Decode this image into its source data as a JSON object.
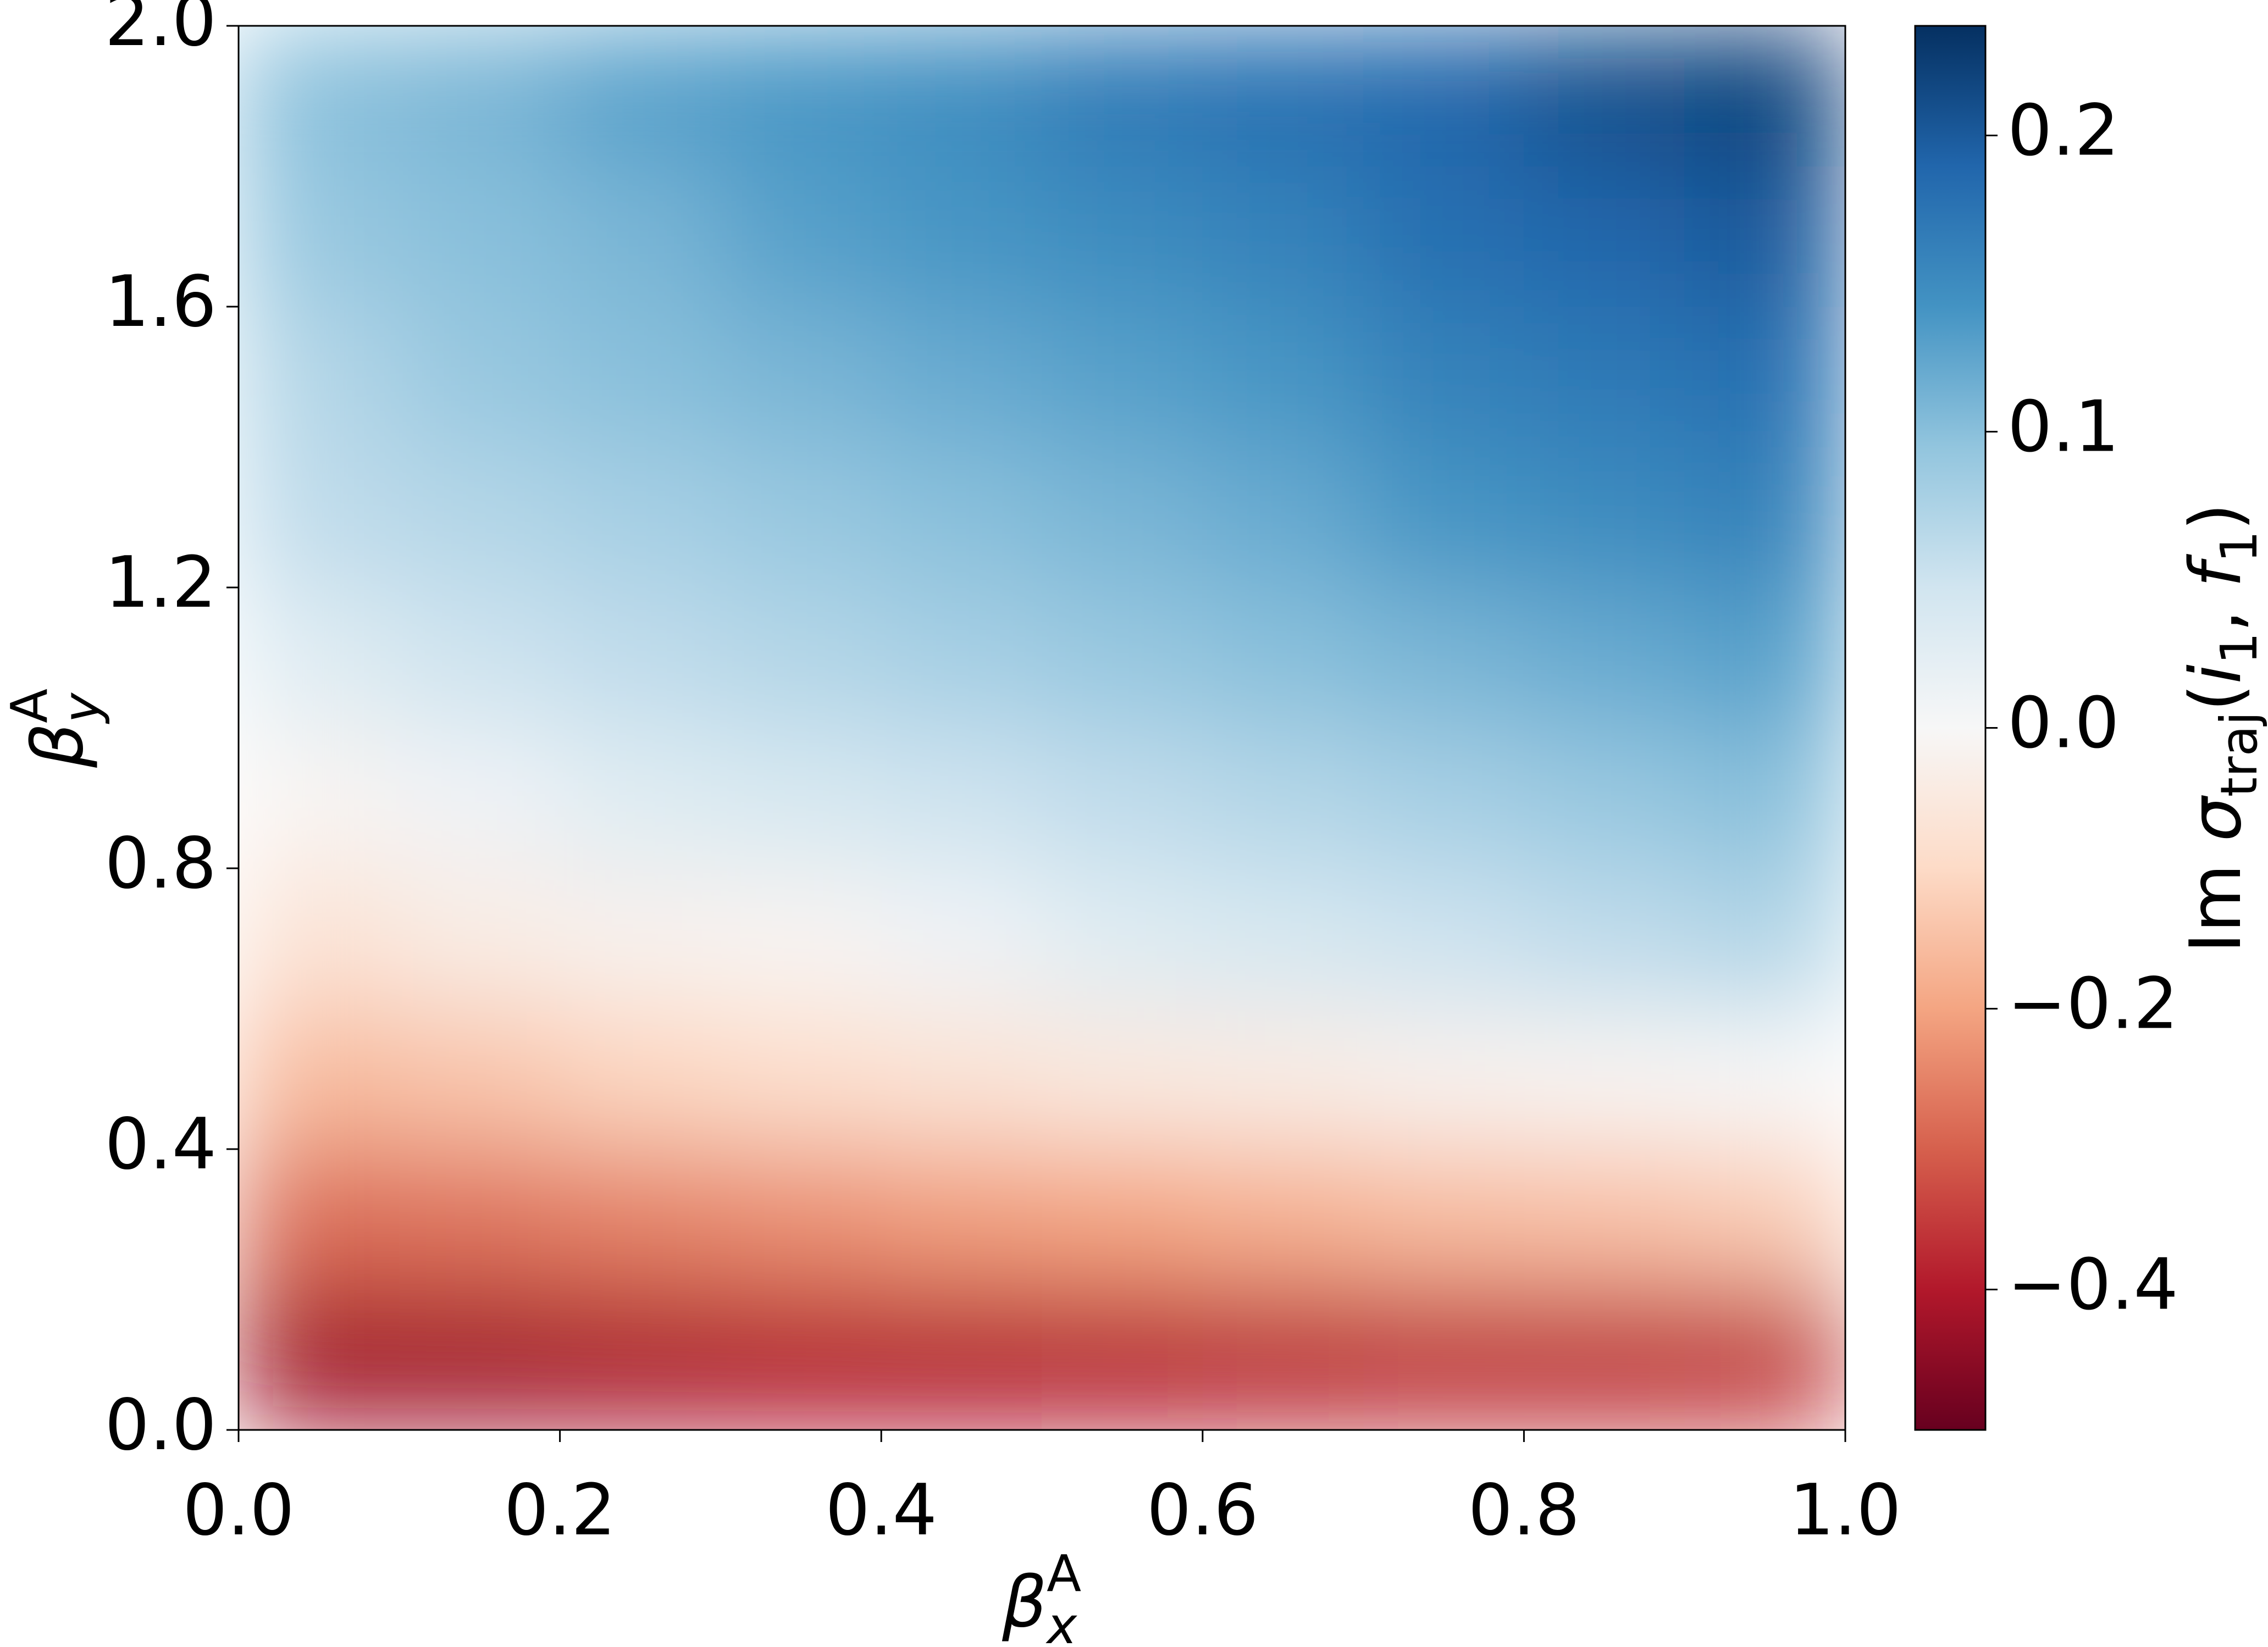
{
  "chart_data": {
    "type": "heatmap",
    "xlabel": {
      "symbol": "β",
      "sub": "x",
      "sup": "A"
    },
    "ylabel": {
      "symbol": "β",
      "sub": "y",
      "sup": "A"
    },
    "colorbar_label": [
      "Im ",
      "σ",
      "traj",
      "(",
      "i",
      "1",
      ", ",
      "f",
      "1",
      ")"
    ],
    "x": [
      0.05,
      0.15,
      0.25,
      0.35,
      0.45,
      0.55,
      0.65,
      0.75,
      0.85,
      0.95
    ],
    "y": [
      0.1,
      0.3,
      0.5,
      0.7,
      0.9,
      1.1,
      1.3,
      1.5,
      1.7,
      1.9
    ],
    "z": [
      [
        -0.42,
        -0.42,
        -0.41,
        -0.4,
        -0.4,
        -0.39,
        -0.38,
        -0.37,
        -0.37,
        -0.36
      ],
      [
        -0.28,
        -0.27,
        -0.25,
        -0.23,
        -0.21,
        -0.2,
        -0.18,
        -0.16,
        -0.15,
        -0.13
      ],
      [
        -0.16,
        -0.14,
        -0.11,
        -0.09,
        -0.07,
        -0.05,
        -0.04,
        -0.02,
        -0.01,
        0.0
      ],
      [
        -0.07,
        -0.04,
        -0.02,
        -0.01,
        0.01,
        0.03,
        0.04,
        0.05,
        0.06,
        0.07
      ],
      [
        -0.01,
        0.01,
        0.03,
        0.04,
        0.05,
        0.06,
        0.07,
        0.08,
        0.09,
        0.1
      ],
      [
        0.03,
        0.05,
        0.06,
        0.07,
        0.08,
        0.09,
        0.1,
        0.11,
        0.12,
        0.13
      ],
      [
        0.06,
        0.07,
        0.08,
        0.09,
        0.1,
        0.11,
        0.12,
        0.14,
        0.15,
        0.16
      ],
      [
        0.07,
        0.09,
        0.1,
        0.11,
        0.12,
        0.13,
        0.14,
        0.16,
        0.17,
        0.18
      ],
      [
        0.09,
        0.1,
        0.11,
        0.13,
        0.14,
        0.15,
        0.16,
        0.18,
        0.19,
        0.2
      ],
      [
        0.1,
        0.11,
        0.13,
        0.14,
        0.15,
        0.17,
        0.18,
        0.19,
        0.21,
        0.22
      ]
    ],
    "xlim": [
      0,
      1
    ],
    "ylim": [
      0,
      2
    ],
    "xticks": [
      {
        "value": 0,
        "label": "0.0"
      },
      0.2,
      0.4,
      0.6,
      0.8,
      {
        "value": 1,
        "label": "1.0"
      }
    ],
    "yticks": [
      {
        "value": 0,
        "label": "0.0"
      },
      0.4,
      0.8,
      1.2,
      1.6,
      {
        "value": 2,
        "label": "2.0"
      }
    ],
    "clim": [
      -0.5,
      0.237
    ],
    "cmap_center": 0,
    "cticks": [
      {
        "value": -0.4,
        "label": "−0.4"
      },
      {
        "value": -0.2,
        "label": "−0.2"
      },
      {
        "value": 0,
        "label": "0.0"
      },
      0.1,
      0.2
    ],
    "colormap": [
      "#67001f",
      "#b2182b",
      "#d6604d",
      "#f4a582",
      "#fddbc7",
      "#f7f7f7",
      "#d1e5f0",
      "#92c5de",
      "#4393c3",
      "#2166ac",
      "#053061"
    ]
  }
}
